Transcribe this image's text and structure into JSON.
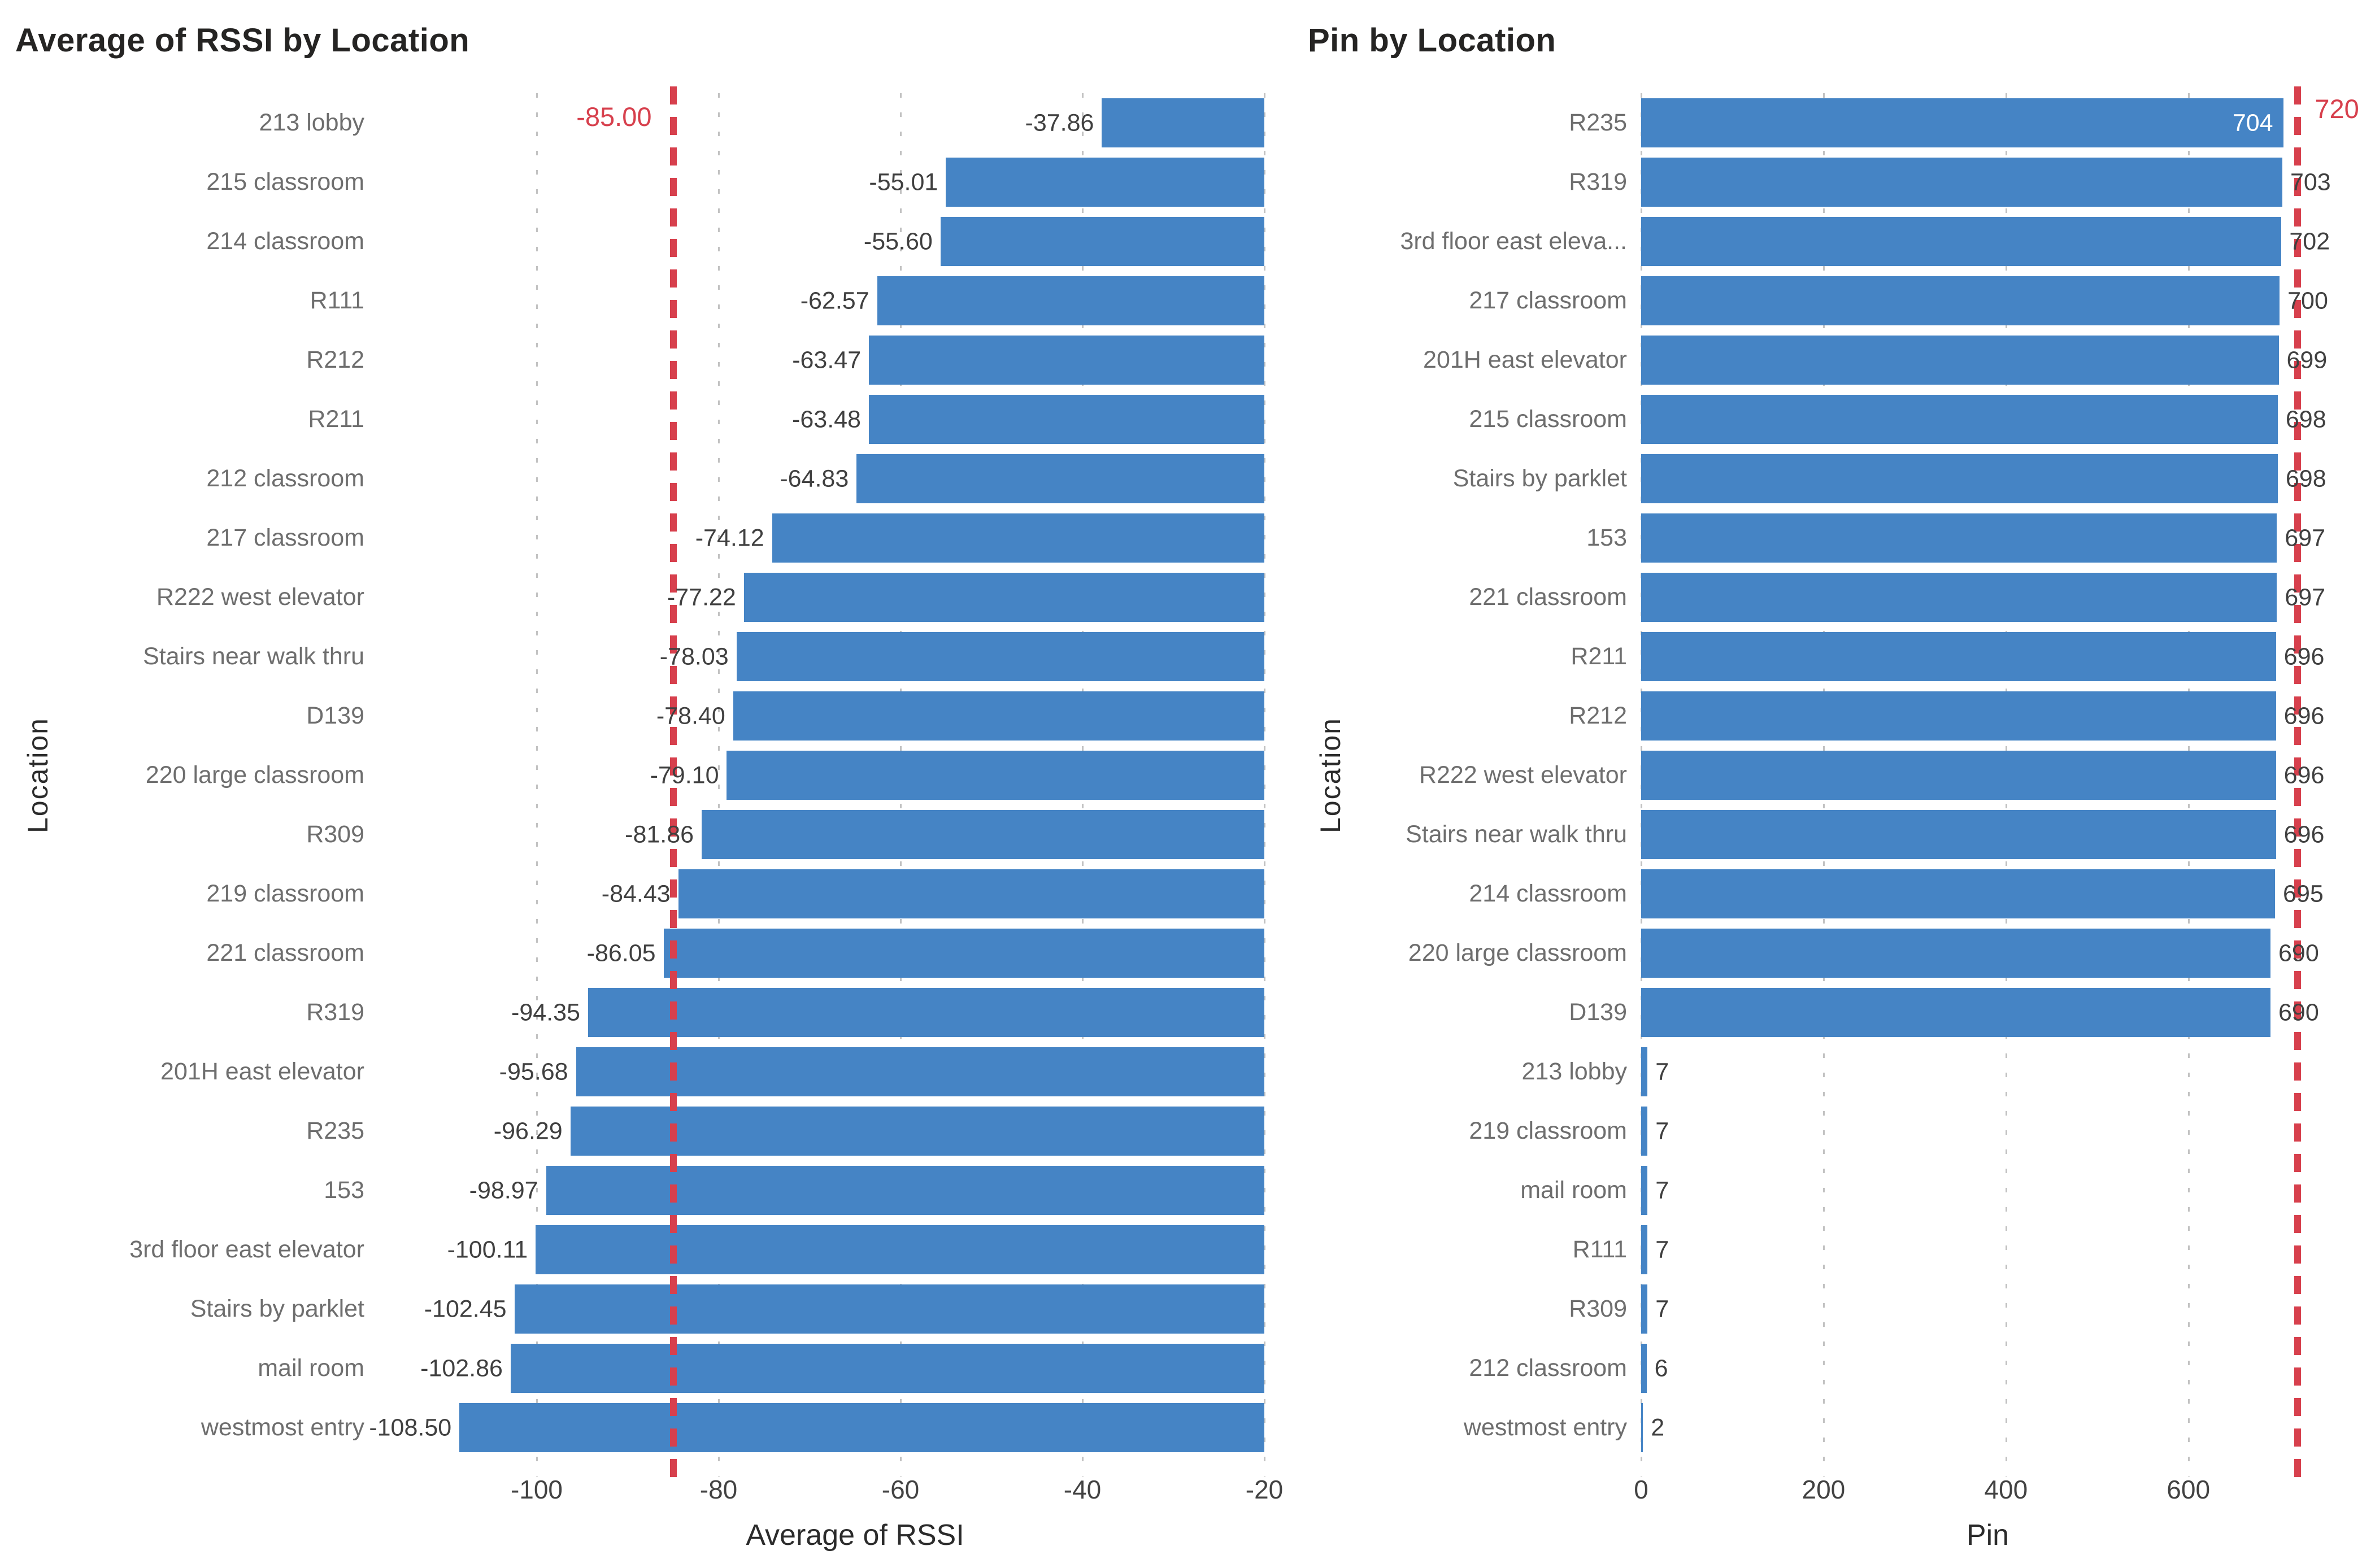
{
  "colors": {
    "bar": "#4584C5",
    "reference_line": "#D7404D",
    "gridline": "#C2C2C2"
  },
  "chart_data": [
    {
      "type": "bar",
      "orientation": "horizontal",
      "title": "Average of RSSI by Location",
      "xlabel": "Average of RSSI",
      "ylabel": "Location",
      "xlim": [
        -110,
        -20
      ],
      "grid": true,
      "bar_anchor": "axis-max",
      "value_label_side": "left",
      "ticks": [
        {
          "value": -100,
          "label": "-100"
        },
        {
          "value": -80,
          "label": "-80"
        },
        {
          "value": -60,
          "label": "-60"
        },
        {
          "value": -40,
          "label": "-40"
        },
        {
          "value": -20,
          "label": "-20"
        }
      ],
      "ref_line": {
        "value": -85,
        "label": "-85.00",
        "label_side": "left"
      },
      "rows": [
        {
          "category": "213 lobby",
          "value": -37.86,
          "label": "-37.86"
        },
        {
          "category": "215 classroom",
          "value": -55.01,
          "label": "-55.01"
        },
        {
          "category": "214 classroom",
          "value": -55.6,
          "label": "-55.60"
        },
        {
          "category": "R111",
          "value": -62.57,
          "label": "-62.57"
        },
        {
          "category": "R212",
          "value": -63.47,
          "label": "-63.47"
        },
        {
          "category": "R211",
          "value": -63.48,
          "label": "-63.48"
        },
        {
          "category": "212 classroom",
          "value": -64.83,
          "label": "-64.83"
        },
        {
          "category": "217 classroom",
          "value": -74.12,
          "label": "-74.12"
        },
        {
          "category": "R222 west elevator",
          "value": -77.22,
          "label": "-77.22"
        },
        {
          "category": "Stairs near walk thru",
          "value": -78.03,
          "label": "-78.03"
        },
        {
          "category": "D139",
          "value": -78.4,
          "label": "-78.40"
        },
        {
          "category": "220 large classroom",
          "value": -79.1,
          "label": "-79.10"
        },
        {
          "category": "R309",
          "value": -81.86,
          "label": "-81.86"
        },
        {
          "category": "219 classroom",
          "value": -84.43,
          "label": "-84.43"
        },
        {
          "category": "221 classroom",
          "value": -86.05,
          "label": "-86.05"
        },
        {
          "category": "R319",
          "value": -94.35,
          "label": "-94.35"
        },
        {
          "category": "201H east elevator",
          "value": -95.68,
          "label": "-95.68"
        },
        {
          "category": "R235",
          "value": -96.29,
          "label": "-96.29"
        },
        {
          "category": "153",
          "value": -98.97,
          "label": "-98.97"
        },
        {
          "category": "3rd floor east elevator",
          "value": -100.11,
          "label": "-100.11"
        },
        {
          "category": "Stairs by parklet",
          "value": -102.45,
          "label": "-102.45"
        },
        {
          "category": "mail room",
          "value": -102.86,
          "label": "-102.86"
        },
        {
          "category": "westmost entry",
          "value": -108.5,
          "label": "-108.50"
        }
      ]
    },
    {
      "type": "bar",
      "orientation": "horizontal",
      "title": "Pin by Location",
      "xlabel": "Pin",
      "ylabel": "Location",
      "xlim": [
        0,
        760
      ],
      "grid": true,
      "bar_anchor": "axis-min",
      "value_label_side": "right",
      "ticks": [
        {
          "value": 0,
          "label": "0"
        },
        {
          "value": 200,
          "label": "200"
        },
        {
          "value": 400,
          "label": "400"
        },
        {
          "value": 600,
          "label": "600"
        }
      ],
      "ref_line": {
        "value": 720,
        "label": "720",
        "label_side": "right"
      },
      "rows": [
        {
          "category": "R235",
          "value": 704,
          "label": "704",
          "label_inside": true
        },
        {
          "category": "R319",
          "value": 703,
          "label": "703"
        },
        {
          "category": "3rd floor east eleva...",
          "value": 702,
          "label": "702"
        },
        {
          "category": "217 classroom",
          "value": 700,
          "label": "700"
        },
        {
          "category": "201H east elevator",
          "value": 699,
          "label": "699"
        },
        {
          "category": "215 classroom",
          "value": 698,
          "label": "698"
        },
        {
          "category": "Stairs by parklet",
          "value": 698,
          "label": "698"
        },
        {
          "category": "153",
          "value": 697,
          "label": "697"
        },
        {
          "category": "221 classroom",
          "value": 697,
          "label": "697"
        },
        {
          "category": "R211",
          "value": 696,
          "label": "696"
        },
        {
          "category": "R212",
          "value": 696,
          "label": "696"
        },
        {
          "category": "R222 west elevator",
          "value": 696,
          "label": "696"
        },
        {
          "category": "Stairs near walk thru",
          "value": 696,
          "label": "696"
        },
        {
          "category": "214 classroom",
          "value": 695,
          "label": "695"
        },
        {
          "category": "220 large classroom",
          "value": 690,
          "label": "690"
        },
        {
          "category": "D139",
          "value": 690,
          "label": "690"
        },
        {
          "category": "213 lobby",
          "value": 7,
          "label": "7"
        },
        {
          "category": "219 classroom",
          "value": 7,
          "label": "7"
        },
        {
          "category": "mail room",
          "value": 7,
          "label": "7"
        },
        {
          "category": "R111",
          "value": 7,
          "label": "7"
        },
        {
          "category": "R309",
          "value": 7,
          "label": "7"
        },
        {
          "category": "212 classroom",
          "value": 6,
          "label": "6"
        },
        {
          "category": "westmost entry",
          "value": 2,
          "label": "2"
        }
      ]
    }
  ]
}
